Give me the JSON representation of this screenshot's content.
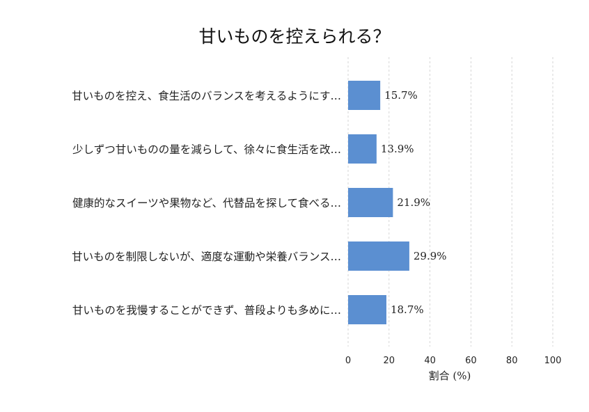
{
  "chart_data": {
    "type": "bar",
    "orientation": "horizontal",
    "title": "甘いものを控えられる？",
    "xlabel": "割合 (%)",
    "ylabel": "",
    "xlim": [
      0,
      100
    ],
    "xticks": [
      0,
      20,
      40,
      60,
      80,
      100
    ],
    "grid": "vertical dashed",
    "bar_color": "#5b8fd1",
    "categories": [
      "甘いものを控え、食生活のバランスを考えるようにす…",
      "少しずつ甘いものの量を減らして、徐々に食生活を改…",
      "健康的なスイーツや果物など、代替品を探して食べる…",
      "甘いものを制限しないが、適度な運動や栄養バランス…",
      "甘いものを我慢することができず、普段よりも多めに…"
    ],
    "values": [
      15.7,
      13.9,
      21.9,
      29.9,
      18.7
    ],
    "value_labels": [
      "15.7%",
      "13.9%",
      "21.9%",
      "29.9%",
      "18.7%"
    ]
  }
}
